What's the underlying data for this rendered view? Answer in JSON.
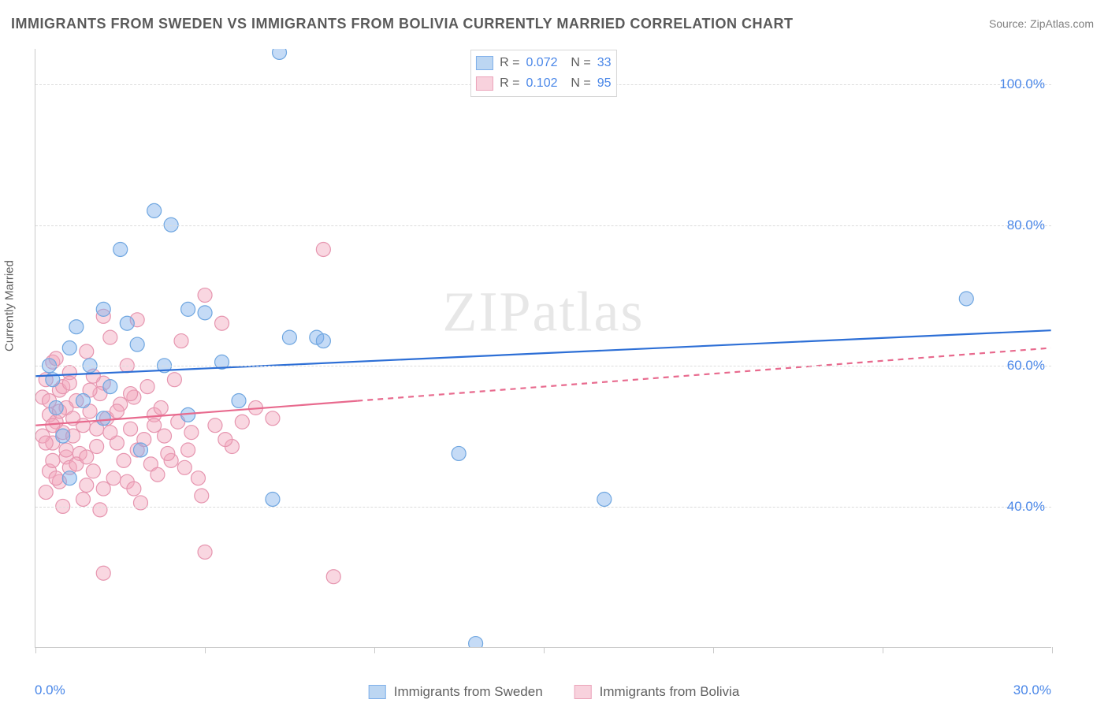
{
  "title": "IMMIGRANTS FROM SWEDEN VS IMMIGRANTS FROM BOLIVIA CURRENTLY MARRIED CORRELATION CHART",
  "source": "Source: ZipAtlas.com",
  "watermark": "ZIPatlas",
  "ylabel": "Currently Married",
  "chart": {
    "type": "scatter",
    "background_color": "#ffffff",
    "grid_color": "#dcdcdc",
    "axis_color": "#c9c9c9",
    "label_color": "#4a87e8",
    "font_family": "Arial",
    "title_fontsize": 18,
    "tick_fontsize": 17,
    "marker_radius": 9,
    "marker_stroke_width": 1.2,
    "reg_line_width": 2.2,
    "xlim": [
      0,
      30
    ],
    "ylim": [
      20,
      105
    ],
    "y_ticks": [
      40,
      60,
      80,
      100
    ],
    "y_tick_labels": [
      "40.0%",
      "60.0%",
      "80.0%",
      "100.0%"
    ],
    "x_ticks": [
      0,
      5,
      10,
      15,
      20,
      25,
      30
    ],
    "x_tick_labels_shown": {
      "0": "0.0%",
      "30": "30.0%"
    },
    "series": {
      "sweden": {
        "label": "Immigrants from Sweden",
        "fill": "rgba(127,176,234,0.45)",
        "stroke": "#6fa6e0",
        "swatch_fill": "#bcd6f2",
        "swatch_border": "#7fb0ea",
        "reg_color": "#2d6fd6",
        "reg": {
          "x1": 0,
          "y1": 58.5,
          "x2": 30,
          "y2": 65.0,
          "dash_after_x": null
        },
        "R": "0.072",
        "N": "33",
        "points": [
          [
            7.2,
            104.5
          ],
          [
            3.5,
            82.0
          ],
          [
            4.0,
            80.0
          ],
          [
            2.5,
            76.5
          ],
          [
            2.0,
            68.0
          ],
          [
            1.2,
            65.5
          ],
          [
            4.5,
            68.0
          ],
          [
            5.0,
            67.5
          ],
          [
            3.0,
            63.0
          ],
          [
            1.0,
            62.5
          ],
          [
            1.6,
            60.0
          ],
          [
            3.8,
            60.0
          ],
          [
            1.4,
            55.0
          ],
          [
            3.1,
            48.0
          ],
          [
            7.5,
            64.0
          ],
          [
            8.3,
            64.0
          ],
          [
            12.5,
            47.5
          ],
          [
            7.0,
            41.0
          ],
          [
            16.8,
            41.0
          ],
          [
            13.0,
            20.5
          ],
          [
            27.5,
            69.5
          ],
          [
            0.5,
            58.0
          ],
          [
            0.6,
            54.0
          ],
          [
            2.0,
            52.5
          ],
          [
            0.8,
            50.0
          ],
          [
            4.5,
            53.0
          ],
          [
            6.0,
            55.0
          ],
          [
            2.2,
            57.0
          ],
          [
            1.0,
            44.0
          ],
          [
            0.4,
            60.0
          ],
          [
            2.7,
            66.0
          ],
          [
            5.5,
            60.5
          ],
          [
            8.5,
            63.5
          ]
        ]
      },
      "bolivia": {
        "label": "Immigrants from Bolivia",
        "fill": "rgba(241,167,189,0.45)",
        "stroke": "#e695af",
        "swatch_fill": "#f8d2dd",
        "swatch_border": "#eba4ba",
        "reg_color": "#e86a8e",
        "reg": {
          "x1": 0,
          "y1": 51.5,
          "x2": 30,
          "y2": 62.5,
          "dash_after_x": 9.5
        },
        "R": "0.102",
        "N": "95",
        "points": [
          [
            8.5,
            76.5
          ],
          [
            5.0,
            70.0
          ],
          [
            5.5,
            66.0
          ],
          [
            2.0,
            67.0
          ],
          [
            3.0,
            66.5
          ],
          [
            2.2,
            64.0
          ],
          [
            4.3,
            63.5
          ],
          [
            1.5,
            62.0
          ],
          [
            0.5,
            60.5
          ],
          [
            2.7,
            60.0
          ],
          [
            1.0,
            59.0
          ],
          [
            0.3,
            58.0
          ],
          [
            2.0,
            57.5
          ],
          [
            3.3,
            57.0
          ],
          [
            0.7,
            56.5
          ],
          [
            1.9,
            56.0
          ],
          [
            0.2,
            55.5
          ],
          [
            1.2,
            55.0
          ],
          [
            2.5,
            54.5
          ],
          [
            0.9,
            54.0
          ],
          [
            1.6,
            53.5
          ],
          [
            0.4,
            53.0
          ],
          [
            3.5,
            53.0
          ],
          [
            2.1,
            52.5
          ],
          [
            0.6,
            52.0
          ],
          [
            1.4,
            51.5
          ],
          [
            2.8,
            51.0
          ],
          [
            0.8,
            50.5
          ],
          [
            1.1,
            50.0
          ],
          [
            3.8,
            50.0
          ],
          [
            4.6,
            50.5
          ],
          [
            7.0,
            52.5
          ],
          [
            5.3,
            51.5
          ],
          [
            6.1,
            52.0
          ],
          [
            2.4,
            49.0
          ],
          [
            0.5,
            49.0
          ],
          [
            1.8,
            48.5
          ],
          [
            3.0,
            48.0
          ],
          [
            4.5,
            48.0
          ],
          [
            1.3,
            47.5
          ],
          [
            0.9,
            47.0
          ],
          [
            5.8,
            48.5
          ],
          [
            2.6,
            46.5
          ],
          [
            3.4,
            46.0
          ],
          [
            1.0,
            45.5
          ],
          [
            0.4,
            45.0
          ],
          [
            4.0,
            46.5
          ],
          [
            1.7,
            45.0
          ],
          [
            2.3,
            44.0
          ],
          [
            3.6,
            44.5
          ],
          [
            0.7,
            43.5
          ],
          [
            1.5,
            43.0
          ],
          [
            4.8,
            44.0
          ],
          [
            2.0,
            42.5
          ],
          [
            0.3,
            42.0
          ],
          [
            5.0,
            33.5
          ],
          [
            4.9,
            41.5
          ],
          [
            1.9,
            39.5
          ],
          [
            2.0,
            30.5
          ],
          [
            8.8,
            30.0
          ],
          [
            0.6,
            61.0
          ],
          [
            0.8,
            57.0
          ],
          [
            1.7,
            58.5
          ],
          [
            2.9,
            55.5
          ],
          [
            3.7,
            54.0
          ],
          [
            0.5,
            51.5
          ],
          [
            1.1,
            52.5
          ],
          [
            6.5,
            54.0
          ],
          [
            4.2,
            52.0
          ],
          [
            5.6,
            49.5
          ],
          [
            3.2,
            49.5
          ],
          [
            0.2,
            50.0
          ],
          [
            1.8,
            51.0
          ],
          [
            2.4,
            53.5
          ],
          [
            0.9,
            48.0
          ],
          [
            3.9,
            47.5
          ],
          [
            1.2,
            46.0
          ],
          [
            4.4,
            45.5
          ],
          [
            2.7,
            43.5
          ],
          [
            0.6,
            44.0
          ],
          [
            1.4,
            41.0
          ],
          [
            0.8,
            40.0
          ],
          [
            3.1,
            40.5
          ],
          [
            1.6,
            56.5
          ],
          [
            0.4,
            55.0
          ],
          [
            2.2,
            50.5
          ],
          [
            3.5,
            51.5
          ],
          [
            1.0,
            57.5
          ],
          [
            0.7,
            53.5
          ],
          [
            2.8,
            56.0
          ],
          [
            4.1,
            58.0
          ],
          [
            0.3,
            49.0
          ],
          [
            1.5,
            47.0
          ],
          [
            2.9,
            42.5
          ],
          [
            0.5,
            46.5
          ]
        ]
      }
    }
  }
}
